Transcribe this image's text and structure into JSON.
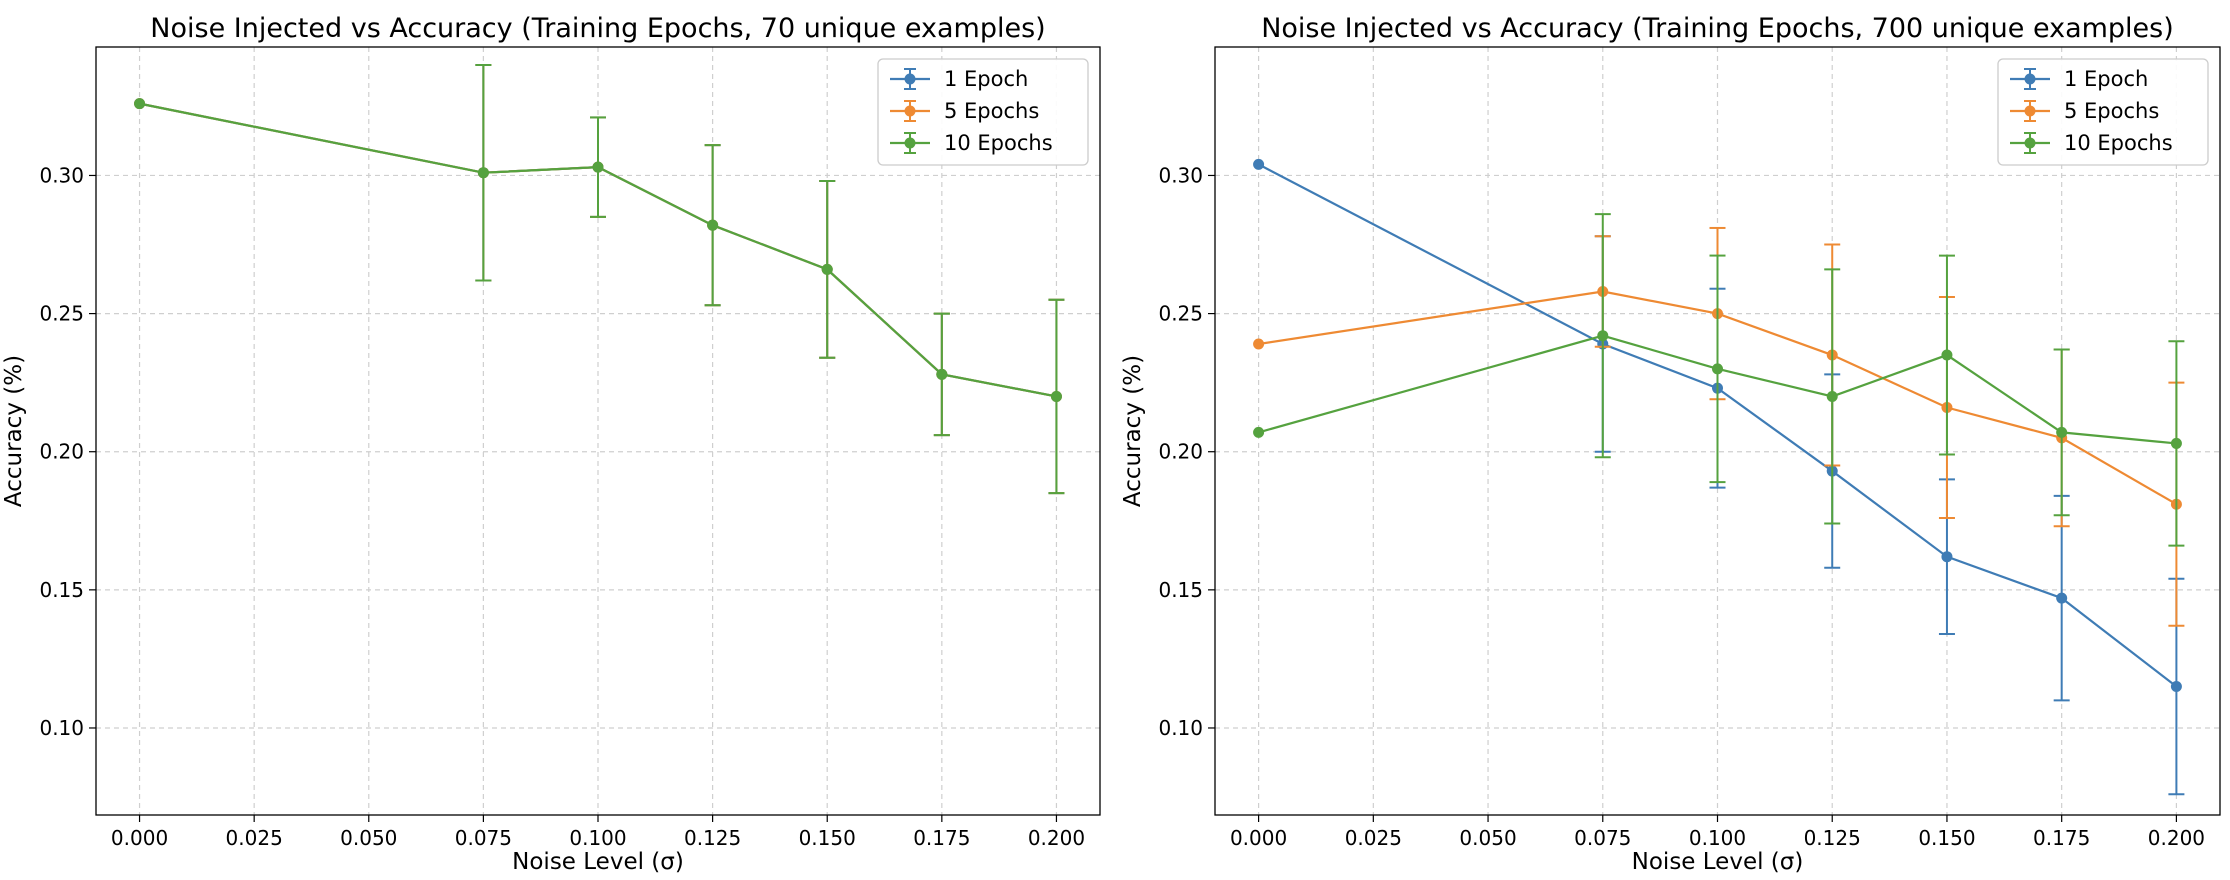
{
  "chart_data": [
    {
      "type": "line",
      "title": "Noise Injected vs Accuracy (Training Epochs, 70 unique examples)",
      "xlabel": "Noise Level (σ)",
      "ylabel": "Accuracy (%)",
      "xlim": [
        -0.0095,
        0.2095
      ],
      "ylim": [
        0.0685,
        0.3465
      ],
      "xticks": [
        "0.000",
        "0.025",
        "0.050",
        "0.075",
        "0.100",
        "0.125",
        "0.150",
        "0.175",
        "0.200"
      ],
      "yticks": [
        "0.10",
        "0.15",
        "0.20",
        "0.25",
        "0.30"
      ],
      "grid": true,
      "legend_position": "top-right",
      "x": [
        0.0,
        0.075,
        0.1,
        0.125,
        0.15,
        0.175,
        0.2
      ],
      "series": [
        {
          "name": "1 Epoch",
          "color": "#3f7cb5",
          "values": [
            0.326,
            0.301,
            0.303,
            0.282,
            0.266,
            0.228,
            0.22
          ],
          "errors": [
            0.0,
            0.039,
            0.018,
            0.029,
            0.032,
            0.022,
            0.035
          ]
        },
        {
          "name": "5 Epochs",
          "color": "#ee8a33",
          "values": [
            0.326,
            0.301,
            0.303,
            0.282,
            0.266,
            0.228,
            0.22
          ],
          "errors": [
            0.0,
            0.039,
            0.018,
            0.029,
            0.032,
            0.022,
            0.035
          ]
        },
        {
          "name": "10 Epochs",
          "color": "#55a23f",
          "values": [
            0.326,
            0.301,
            0.303,
            0.282,
            0.266,
            0.228,
            0.22
          ],
          "errors": [
            0.0,
            0.039,
            0.018,
            0.029,
            0.032,
            0.022,
            0.035
          ]
        }
      ]
    },
    {
      "type": "line",
      "title": "Noise Injected vs Accuracy (Training Epochs, 700 unique examples)",
      "xlabel": "Noise Level (σ)",
      "ylabel": "Accuracy (%)",
      "xlim": [
        -0.0095,
        0.2095
      ],
      "ylim": [
        0.0685,
        0.3465
      ],
      "xticks": [
        "0.000",
        "0.025",
        "0.050",
        "0.075",
        "0.100",
        "0.125",
        "0.150",
        "0.175",
        "0.200"
      ],
      "yticks": [
        "0.10",
        "0.15",
        "0.20",
        "0.25",
        "0.30"
      ],
      "grid": true,
      "legend_position": "top-right",
      "x": [
        0.0,
        0.075,
        0.1,
        0.125,
        0.15,
        0.175,
        0.2
      ],
      "series": [
        {
          "name": "1 Epoch",
          "color": "#3f7cb5",
          "values": [
            0.304,
            0.239,
            0.223,
            0.193,
            0.162,
            0.147,
            0.115
          ],
          "errors": [
            0.0,
            0.039,
            0.036,
            0.035,
            0.028,
            0.037,
            0.039
          ]
        },
        {
          "name": "5 Epochs",
          "color": "#ee8a33",
          "values": [
            0.239,
            0.258,
            0.25,
            0.235,
            0.216,
            0.205,
            0.181
          ],
          "errors": [
            0.0,
            0.02,
            0.031,
            0.04,
            0.04,
            0.032,
            0.044
          ]
        },
        {
          "name": "10 Epochs",
          "color": "#55a23f",
          "values": [
            0.207,
            0.242,
            0.23,
            0.22,
            0.235,
            0.207,
            0.203
          ],
          "errors": [
            0.0,
            0.044,
            0.041,
            0.046,
            0.036,
            0.03,
            0.037
          ]
        }
      ]
    }
  ]
}
